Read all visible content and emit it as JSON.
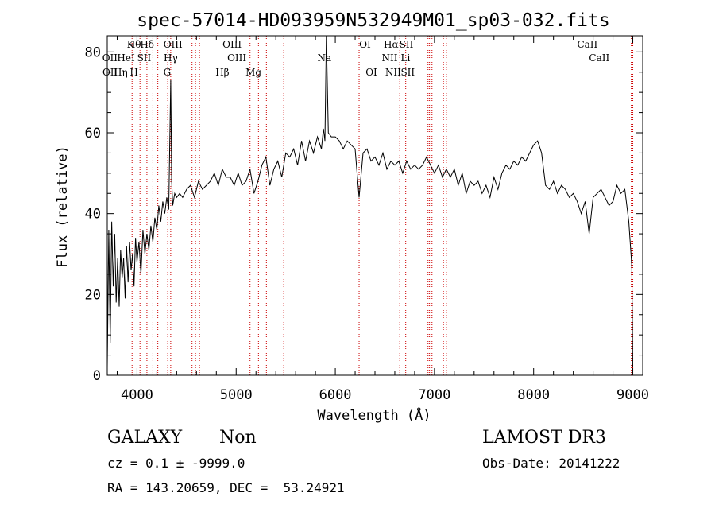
{
  "chart_data": {
    "type": "line",
    "title": "spec-57014-HD093959N532949M01_sp03-032.fits",
    "xlabel": "Wavelength (Å)",
    "ylabel": "Flux (relative)",
    "xlim": [
      3700,
      9100
    ],
    "ylim": [
      0,
      84
    ],
    "xticks": [
      4000,
      5000,
      6000,
      7000,
      8000,
      9000
    ],
    "yticks": [
      0,
      20,
      40,
      60,
      80
    ],
    "line_color": "#000000",
    "marker_color": "#cc0000",
    "series": [
      {
        "x": [
          3700,
          3715,
          3730,
          3745,
          3760,
          3775,
          3790,
          3805,
          3820,
          3835,
          3850,
          3865,
          3880,
          3895,
          3910,
          3925,
          3940,
          3955,
          3970,
          3985,
          4000,
          4020,
          4040,
          4060,
          4080,
          4100,
          4120,
          4140,
          4160,
          4180,
          4200,
          4220,
          4240,
          4260,
          4280,
          4300,
          4320,
          4340,
          4350,
          4360,
          4380,
          4400,
          4430,
          4460,
          4500,
          4540,
          4580,
          4620,
          4660,
          4700,
          4740,
          4780,
          4820,
          4860,
          4900,
          4940,
          4980,
          5020,
          5060,
          5100,
          5140,
          5180,
          5220,
          5260,
          5300,
          5340,
          5380,
          5420,
          5460,
          5500,
          5540,
          5580,
          5620,
          5660,
          5700,
          5740,
          5780,
          5820,
          5860,
          5880,
          5895,
          5910,
          5930,
          5960,
          6000,
          6040,
          6080,
          6120,
          6160,
          6200,
          6240,
          6280,
          6320,
          6360,
          6400,
          6440,
          6480,
          6520,
          6560,
          6600,
          6640,
          6680,
          6720,
          6760,
          6800,
          6840,
          6880,
          6920,
          6960,
          7000,
          7040,
          7080,
          7120,
          7160,
          7200,
          7240,
          7280,
          7320,
          7360,
          7400,
          7440,
          7480,
          7520,
          7560,
          7600,
          7640,
          7680,
          7720,
          7760,
          7800,
          7840,
          7880,
          7920,
          7960,
          8000,
          8040,
          8080,
          8120,
          8160,
          8200,
          8240,
          8280,
          8320,
          8360,
          8400,
          8440,
          8480,
          8520,
          8560,
          8600,
          8640,
          8680,
          8720,
          8760,
          8800,
          8840,
          8880,
          8920,
          8960,
          8990,
          9000
        ],
        "y": [
          2,
          36,
          8,
          38,
          22,
          35,
          18,
          29,
          17,
          31,
          24,
          29,
          19,
          32,
          23,
          33,
          26,
          30,
          22,
          34,
          28,
          33,
          25,
          36,
          30,
          35,
          31,
          37,
          33,
          39,
          36,
          42,
          38,
          43,
          40,
          44,
          41,
          73,
          48,
          42,
          45,
          44,
          45,
          44,
          46,
          47,
          44,
          48,
          46,
          47,
          48,
          50,
          47,
          51,
          49,
          49,
          47,
          50,
          47,
          48,
          51,
          45,
          48,
          52,
          54,
          47,
          51,
          53,
          49,
          55,
          54,
          56,
          52,
          58,
          53,
          58,
          55,
          59,
          56,
          61,
          58,
          84,
          60,
          59,
          59,
          58,
          56,
          58,
          57,
          56,
          44,
          55,
          56,
          53,
          54,
          52,
          55,
          51,
          53,
          52,
          53,
          50,
          53,
          51,
          52,
          51,
          52,
          54,
          52,
          50,
          52,
          49,
          51,
          49,
          51,
          47,
          50,
          45,
          48,
          47,
          48,
          45,
          47,
          44,
          49,
          46,
          50,
          52,
          51,
          53,
          52,
          54,
          53,
          55,
          57,
          58,
          55,
          47,
          46,
          48,
          45,
          47,
          46,
          44,
          45,
          43,
          40,
          43,
          35,
          44,
          45,
          46,
          44,
          42,
          43,
          47,
          45,
          46,
          38,
          27,
          2
        ]
      }
    ],
    "line_labels": [
      {
        "label": "Hθ",
        "wavelengths": [
          3970
        ],
        "row": 1
      },
      {
        "label": "K",
        "wavelengths": [
          3934
        ],
        "row": 1
      },
      {
        "label": "Hδ",
        "wavelengths": [
          4102
        ],
        "row": 1
      },
      {
        "label": "OIII",
        "wavelengths": [
          4363
        ],
        "row": 1
      },
      {
        "label": "OIII",
        "wavelengths": [
          4959
        ],
        "row": 1
      },
      {
        "label": "OI",
        "wavelengths": [
          6300
        ],
        "row": 1
      },
      {
        "label": "Hα",
        "wavelengths": [
          6563
        ],
        "row": 1
      },
      {
        "label": "SII",
        "wavelengths": [
          6717
        ],
        "row": 1
      },
      {
        "label": "CaII",
        "wavelengths": [
          8542
        ],
        "row": 1
      },
      {
        "label": "OII",
        "wavelengths": [
          3727
        ],
        "row": 2
      },
      {
        "label": "HeI",
        "wavelengths": [
          3889
        ],
        "row": 2
      },
      {
        "label": "SII",
        "wavelengths": [
          4072
        ],
        "row": 2
      },
      {
        "label": "Hγ",
        "wavelengths": [
          4340
        ],
        "row": 2
      },
      {
        "label": "OIII",
        "wavelengths": [
          5007
        ],
        "row": 2
      },
      {
        "label": "Na",
        "wavelengths": [
          5890
        ],
        "row": 2
      },
      {
        "label": "NII",
        "wavelengths": [
          6548
        ],
        "row": 2
      },
      {
        "label": "Li",
        "wavelengths": [
          6708
        ],
        "row": 2
      },
      {
        "label": "CaII",
        "wavelengths": [
          8662
        ],
        "row": 2
      },
      {
        "label": "OII",
        "wavelengths": [
          3729
        ],
        "row": 3
      },
      {
        "label": "Hη",
        "wavelengths": [
          3835
        ],
        "row": 3
      },
      {
        "label": "H",
        "wavelengths": [
          3969
        ],
        "row": 3
      },
      {
        "label": "G",
        "wavelengths": [
          4304
        ],
        "row": 3
      },
      {
        "label": "Hβ",
        "wavelengths": [
          4861
        ],
        "row": 3
      },
      {
        "label": "Mg",
        "wavelengths": [
          5175
        ],
        "row": 3
      },
      {
        "label": "OI",
        "wavelengths": [
          6364
        ],
        "row": 3
      },
      {
        "label": "NII",
        "wavelengths": [
          6583
        ],
        "row": 3
      },
      {
        "label": "SII",
        "wavelengths": [
          6731
        ],
        "row": 3
      }
    ],
    "marker_wavelengths": [
      3950,
      4030,
      4100,
      4160,
      4210,
      4310,
      4340,
      4555,
      4590,
      4630,
      5140,
      5225,
      5305,
      5480,
      6240,
      6650,
      6710,
      6935,
      6950,
      6975,
      7090,
      7120,
      8985,
      9000
    ]
  },
  "info": {
    "object_class": "GALAXY",
    "subclass": "Non",
    "survey": "LAMOST DR3",
    "cz_line": "cz = 0.1 ± -9999.0",
    "obs_date_line": "Obs-Date: 20141222",
    "coords_line": "RA = 143.20659, DEC =  53.24921"
  }
}
